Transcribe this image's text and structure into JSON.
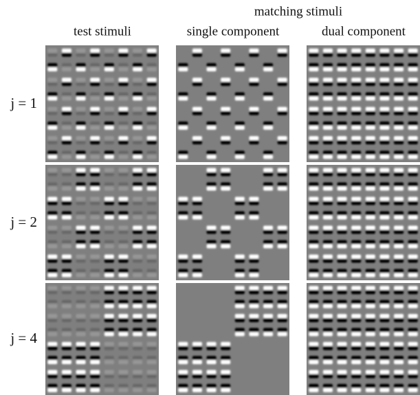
{
  "header": {
    "title": "matching stimuli"
  },
  "columns": [
    "test stimuli",
    "single component",
    "dual component"
  ],
  "rows": [
    "j = 1",
    "j = 2",
    "j = 4"
  ]
}
